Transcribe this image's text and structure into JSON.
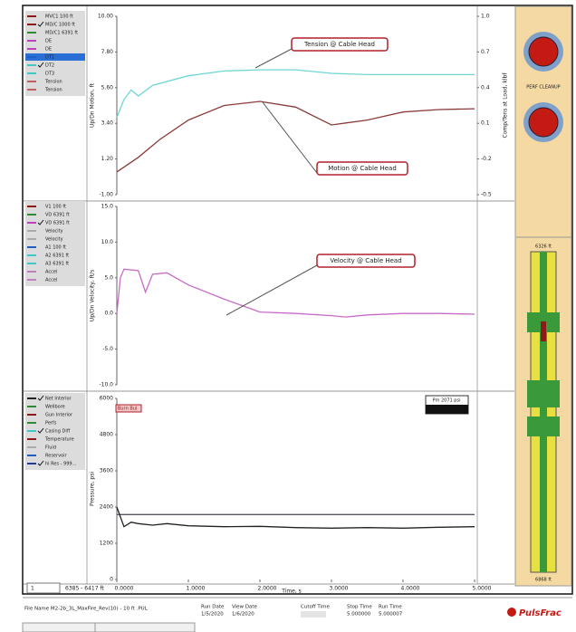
{
  "x_label": "Time, s",
  "xlim": [
    0,
    5
  ],
  "xticks": [
    {
      "value": 0,
      "label": "0.0000"
    },
    {
      "value": 1,
      "label": "1.0000"
    },
    {
      "value": 2,
      "label": "2.0000"
    },
    {
      "value": 3,
      "label": "3.0000"
    },
    {
      "value": 4,
      "label": "4.0000"
    },
    {
      "value": 5,
      "label": "5.0000"
    }
  ],
  "selector": "1",
  "depth_range": "6385 - 6417 ft",
  "panels": [
    {
      "y_label": "Up/Dn Motion, ft",
      "y2_label": "Comp/Tens at Load, klbf",
      "ylim": [
        -1,
        10
      ],
      "yticks": [
        {
          "value": 10,
          "label": "10.00"
        },
        {
          "value": 7.8,
          "label": "7.80"
        },
        {
          "value": 5.6,
          "label": "5.60"
        },
        {
          "value": 3.4,
          "label": "3.40"
        },
        {
          "value": 1.2,
          "label": "1.20"
        },
        {
          "value": -1,
          "label": "-1.00"
        }
      ],
      "y2lim": [
        -0.5,
        1.0
      ],
      "y2ticks": [
        {
          "value": 1,
          "label": "1.0"
        },
        0.7,
        0.4,
        0.1,
        -0.2,
        -0.5
      ],
      "legend": [
        {
          "label": "MVC1 100 ft",
          "color": "#8b1a1a",
          "checked": false
        },
        {
          "label": "MD/C 1000 ft",
          "color": "#8b1a1a",
          "checked": true
        },
        {
          "label": "MD/C1 6391 ft",
          "color": "#2e8b2e",
          "checked": false
        },
        {
          "label": "DE",
          "color": "#c040c0",
          "checked": false
        },
        {
          "label": "DE",
          "color": "#c040c0",
          "checked": false
        },
        {
          "label": "DT1",
          "color": "#1e5fbf",
          "checked": false
        },
        {
          "label": "DT2",
          "color": "#40c8c8",
          "checked": true
        },
        {
          "label": "DT3",
          "color": "#40c8c8",
          "checked": false
        },
        {
          "label": "Tension",
          "color": "#c06060",
          "checked": false
        },
        {
          "label": "Tension",
          "color": "#c06060",
          "checked": false
        }
      ],
      "series": [
        {
          "color": "#6fd6d6",
          "axis": "y2",
          "x": [
            0,
            0.1,
            0.2,
            0.3,
            0.5,
            1.0,
            1.5,
            2.0,
            2.5,
            3.0,
            3.5,
            4.0,
            5.0
          ],
          "values": [
            0.15,
            0.3,
            0.38,
            0.33,
            0.42,
            0.5,
            0.54,
            0.55,
            0.55,
            0.52,
            0.51,
            0.51,
            0.51
          ]
        },
        {
          "color": "#8b3a3a",
          "x": [
            0,
            0.3,
            0.6,
            1.0,
            1.5,
            2.0,
            2.5,
            3.0,
            3.5,
            4.0,
            4.5,
            5.0
          ],
          "values": [
            0.4,
            1.3,
            2.4,
            3.6,
            4.5,
            4.75,
            4.4,
            3.3,
            3.6,
            4.1,
            4.25,
            4.3
          ]
        }
      ],
      "annotations": [
        "Tension @ Cable Head",
        "Motion @ Cable Head"
      ]
    },
    {
      "y_label": "Up/Dn Velocity, ft/s",
      "ylim": [
        -10,
        15
      ],
      "yticks": [
        {
          "value": 15,
          "label": "15.0"
        },
        {
          "value": 10,
          "label": "10.0"
        },
        {
          "value": 5,
          "label": "5.0"
        },
        {
          "value": 0,
          "label": "0.0"
        },
        {
          "value": -5,
          "label": "-5.0"
        },
        {
          "value": -10,
          "label": "-10.0"
        }
      ],
      "legend": [
        {
          "label": "V1 100 ft",
          "color": "#8b1a1a",
          "checked": false
        },
        {
          "label": "VD 6391 ft",
          "color": "#2e8b2e",
          "checked": false
        },
        {
          "label": "VD 6391 ft",
          "color": "#c040c0",
          "checked": true
        },
        {
          "label": "Velocity",
          "color": "#aaaaaa",
          "checked": false
        },
        {
          "label": "Velocity",
          "color": "#aaaaaa",
          "checked": false
        },
        {
          "label": "A1 100 ft",
          "color": "#1e5fbf",
          "checked": false
        },
        {
          "label": "A2 6391 ft",
          "color": "#40c8c8",
          "checked": false
        },
        {
          "label": "A3 6391 ft",
          "color": "#40c8c8",
          "checked": false
        },
        {
          "label": "Accel",
          "color": "#c080c0",
          "checked": false
        },
        {
          "label": "Accel",
          "color": "#c080c0",
          "checked": false
        }
      ],
      "series": [
        {
          "color": "#c86ac8",
          "x": [
            0,
            0.05,
            0.1,
            0.3,
            0.4,
            0.5,
            0.7,
            1.0,
            1.5,
            2.0,
            2.5,
            3.0,
            3.2,
            3.5,
            4.0,
            4.5,
            5.0
          ],
          "values": [
            0,
            5,
            6.2,
            6.0,
            3,
            5.5,
            5.7,
            4,
            2,
            0.2,
            0,
            -0.3,
            -0.5,
            -0.2,
            0,
            0,
            -0.1
          ]
        }
      ],
      "annotations": [
        "Velocity @ Cable Head"
      ]
    },
    {
      "y_label": "Pressure, psi",
      "ylim": [
        0,
        6000
      ],
      "yticks": [
        6000,
        4800,
        3600,
        2400,
        1200,
        0
      ],
      "legend": [
        {
          "label": "Net Interior",
          "color": "#222222",
          "checked": true
        },
        {
          "label": "Wellbore",
          "color": "#2e8b2e",
          "checked": false
        },
        {
          "label": "Gun Interior",
          "color": "#8b1a1a",
          "checked": false
        },
        {
          "label": "Perfs",
          "color": "#2e8b2e",
          "checked": false
        },
        {
          "label": "Casing Diff",
          "color": "#40c8c8",
          "checked": true
        },
        {
          "label": "Temperature",
          "color": "#8b1a1a",
          "checked": false
        },
        {
          "label": "Fluid",
          "color": "#aaaaaa",
          "checked": false
        },
        {
          "label": "Reservoir",
          "color": "#1e5fbf",
          "checked": false
        },
        {
          "label": "hi Res - 999...",
          "color": "#1e3f8f",
          "checked": true
        }
      ],
      "series": [
        {
          "color": "#555566",
          "x": [
            0,
            5
          ],
          "values": [
            2150,
            2150
          ]
        },
        {
          "color": "#222222",
          "x": [
            0,
            0.1,
            0.2,
            0.3,
            0.5,
            0.7,
            1.0,
            1.5,
            2.0,
            2.5,
            3.0,
            3.5,
            4.0,
            4.5,
            5.0
          ],
          "values": [
            2400,
            1750,
            1900,
            1850,
            1800,
            1850,
            1780,
            1750,
            1760,
            1720,
            1700,
            1720,
            1700,
            1730,
            1750
          ]
        }
      ],
      "annotations": [],
      "tag": "Burn Bul",
      "readout": "Pm  2071 psi"
    }
  ],
  "sidebar": {
    "gauge_label": "PERF CLEANUP",
    "top_depth": "6326 ft",
    "bottom_depth": "6868 ft"
  },
  "footer": {
    "file_name": "File Name M2-2b_3L_MaxFire_Rev(10) - 10 ft .PUL",
    "run_date_label": "Run Date",
    "run_date": "1/5/2020",
    "view_date_label": "View Date",
    "view_date": "1/6/2020",
    "cutoff_label": "Cutoff Time",
    "stop_label": "Stop Time",
    "stop_time": "5.000000",
    "run_time_label": "Run Time",
    "run_time": "5.000007",
    "brand": "PulsFrac"
  }
}
